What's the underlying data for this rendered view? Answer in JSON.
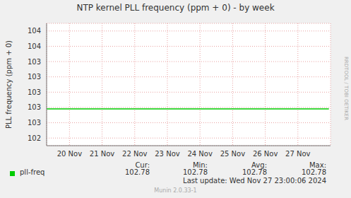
{
  "chart_data": {
    "type": "line",
    "title": "NTP kernel PLL frequency (ppm + 0) - by week",
    "y_label": "PLL frequency (ppm + 0)",
    "x": [
      19.3,
      21,
      23,
      25,
      27,
      27.95
    ],
    "xlim": [
      19.3,
      28.0
    ],
    "xticks": [
      {
        "value": 20,
        "label": "20 Nov"
      },
      {
        "value": 21,
        "label": "21 Nov"
      },
      {
        "value": 22,
        "label": "22 Nov"
      },
      {
        "value": 23,
        "label": "23 Nov"
      },
      {
        "value": 24,
        "label": "24 Nov"
      },
      {
        "value": 25,
        "label": "25 Nov"
      },
      {
        "value": 26,
        "label": "26 Nov"
      },
      {
        "value": 27,
        "label": "27 Nov"
      }
    ],
    "ylim": [
      102.3,
      103.9
    ],
    "yticks": [
      {
        "value": 102.4,
        "label": "102"
      },
      {
        "value": 102.6,
        "label": "103"
      },
      {
        "value": 102.8,
        "label": "103"
      },
      {
        "value": 103.0,
        "label": "103"
      },
      {
        "value": 103.2,
        "label": "103"
      },
      {
        "value": 103.4,
        "label": "103"
      },
      {
        "value": 103.6,
        "label": "104"
      },
      {
        "value": 103.8,
        "label": "104"
      }
    ],
    "grid": true,
    "series": [
      {
        "name": "pll-freq",
        "color": "#00cc00",
        "values": [
          102.78,
          102.78,
          102.78,
          102.78,
          102.78,
          102.78
        ],
        "stats": [
          102.78,
          102.78,
          102.78,
          102.78
        ]
      }
    ],
    "stats_labels": [
      "Cur:",
      "Min:",
      "Avg:",
      "Max:"
    ],
    "footer": "Last update: Wed Nov 27 23:00:06 2024",
    "credit": "Munin 2.0.33-1",
    "side_text": "RRDTOOL / TOBI OETIKER"
  }
}
